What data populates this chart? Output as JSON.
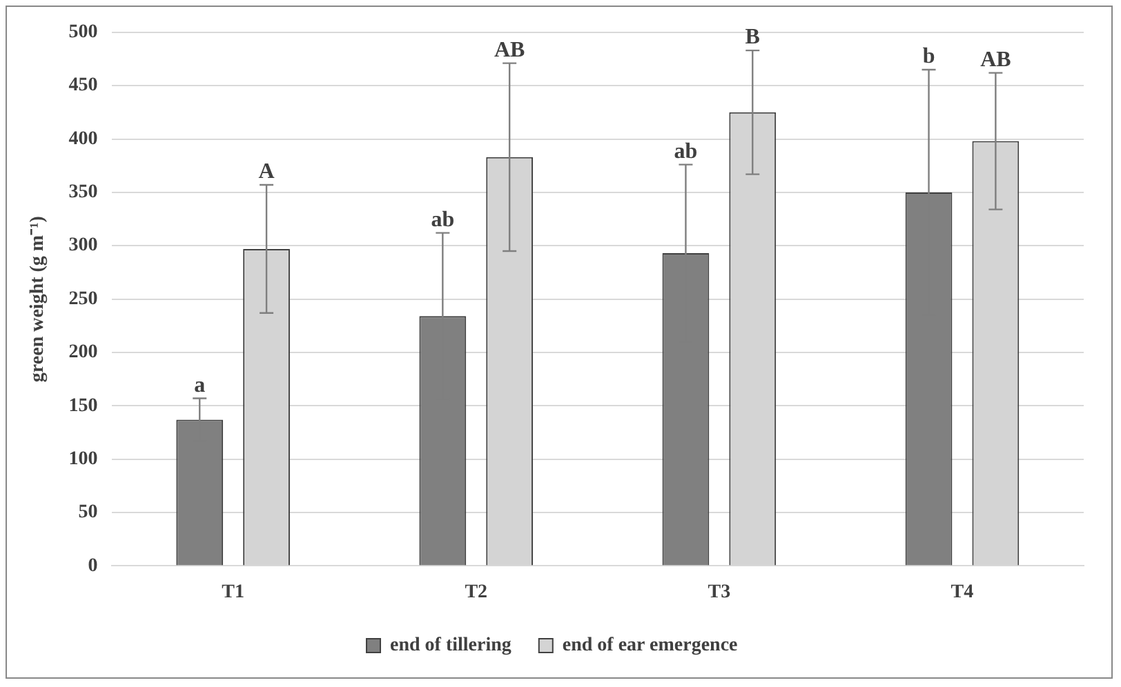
{
  "chart_data": {
    "type": "bar",
    "ylabel": "green weight (g m⁻¹)",
    "categories": [
      "T1",
      "T2",
      "T3",
      "T4"
    ],
    "series": [
      {
        "name": "end of tillering",
        "color": "#808080",
        "values": [
          137,
          234,
          293,
          350
        ],
        "errors": [
          20,
          78,
          83,
          115
        ]
      },
      {
        "name": "end of ear emergence",
        "color": "#d4d4d4",
        "values": [
          297,
          383,
          425,
          398
        ],
        "errors": [
          60,
          88,
          58,
          64
        ]
      }
    ],
    "ylim": [
      0,
      500
    ],
    "yticks": [
      0,
      50,
      100,
      150,
      200,
      250,
      300,
      350,
      400,
      450,
      500
    ],
    "grid": "y",
    "legend": "bottom",
    "annotations": [
      "a",
      "A",
      "ab",
      "AB",
      "ab",
      "B",
      "b",
      "AB"
    ]
  }
}
